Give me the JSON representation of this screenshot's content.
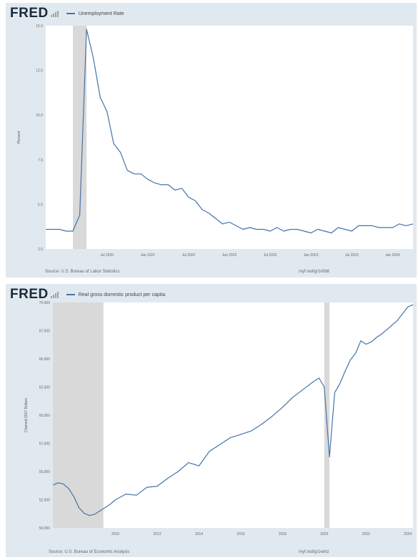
{
  "brand": "FRED",
  "charts": [
    {
      "legend": "Unemployment Rate",
      "source": "Source: U.S. Bureau of Labor Statistics",
      "url": "myf.red/g/1v0b8",
      "line_color": "#4572a7",
      "recession_color": "#d9d9d9"
    },
    {
      "legend": "Real gross domestic product per capita",
      "source": "Source: U.S. Bureau of Economic Analysis",
      "url": "myf.red/g/1vehz",
      "line_color": "#4572a7",
      "recession_color": "#d9d9d9"
    }
  ],
  "chart_data": [
    {
      "type": "line",
      "title": "",
      "xlabel": "",
      "ylabel": "Percent",
      "xlim": [
        2019.75,
        2024.25
      ],
      "ylim": [
        2.5,
        15.0
      ],
      "y_ticks": [
        2.5,
        5.0,
        7.5,
        10.0,
        12.5,
        15.0
      ],
      "y_tick_labels": [
        "2.5",
        "5.0",
        "7.5",
        "10.0",
        "12.5",
        "15.0"
      ],
      "x_ticks": [
        2020.5,
        2021.0,
        2021.5,
        2022.0,
        2022.5,
        2023.0,
        2023.5,
        2024.0
      ],
      "x_tick_labels": [
        "Jul 2020",
        "Jan 2021",
        "Jul 2021",
        "Jan 2022",
        "Jul 2022",
        "Jan 2023",
        "Jul 2023",
        "Jan 2024"
      ],
      "recessions": [
        [
          2020.083,
          2020.25
        ]
      ],
      "grid": false,
      "series": [
        {
          "name": "Unemployment Rate",
          "x": [
            2019.75,
            2019.833,
            2019.917,
            2020.0,
            2020.083,
            2020.167,
            2020.25,
            2020.333,
            2020.417,
            2020.5,
            2020.583,
            2020.667,
            2020.75,
            2020.833,
            2020.917,
            2021.0,
            2021.083,
            2021.167,
            2021.25,
            2021.333,
            2021.417,
            2021.5,
            2021.583,
            2021.667,
            2021.75,
            2021.833,
            2021.917,
            2022.0,
            2022.083,
            2022.167,
            2022.25,
            2022.333,
            2022.417,
            2022.5,
            2022.583,
            2022.667,
            2022.75,
            2022.833,
            2022.917,
            2023.0,
            2023.083,
            2023.167,
            2023.25,
            2023.333,
            2023.417,
            2023.5,
            2023.583,
            2023.667,
            2023.75,
            2023.833,
            2023.917,
            2024.0,
            2024.083,
            2024.167,
            2024.25
          ],
          "y": [
            3.6,
            3.6,
            3.6,
            3.5,
            3.5,
            4.4,
            14.8,
            13.2,
            11.0,
            10.2,
            8.4,
            7.9,
            6.9,
            6.7,
            6.7,
            6.4,
            6.2,
            6.1,
            6.1,
            5.8,
            5.9,
            5.4,
            5.2,
            4.7,
            4.5,
            4.2,
            3.9,
            4.0,
            3.8,
            3.6,
            3.7,
            3.6,
            3.6,
            3.5,
            3.7,
            3.5,
            3.6,
            3.6,
            3.5,
            3.4,
            3.6,
            3.5,
            3.4,
            3.7,
            3.6,
            3.5,
            3.8,
            3.8,
            3.8,
            3.7,
            3.7,
            3.7,
            3.9,
            3.8,
            3.9
          ]
        }
      ]
    },
    {
      "type": "line",
      "title": "",
      "xlabel": "",
      "ylabel": "Chained 2017 Dollars",
      "xlim": [
        2007.0,
        2024.25
      ],
      "ylim": [
        50000,
        70000
      ],
      "y_ticks": [
        50000,
        52500,
        55000,
        57500,
        60000,
        62500,
        65000,
        67500,
        70000
      ],
      "y_tick_labels": [
        "50,000",
        "52,500",
        "55,000",
        "57,500",
        "60,000",
        "62,500",
        "65,000",
        "67,500",
        "70,000"
      ],
      "x_ticks": [
        2010,
        2012,
        2014,
        2016,
        2018,
        2020,
        2022,
        2024
      ],
      "x_tick_labels": [
        "2010",
        "2012",
        "2014",
        "2016",
        "2018",
        "2020",
        "2022",
        "2024"
      ],
      "recessions": [
        [
          2007.0,
          2009.42
        ],
        [
          2020.0,
          2020.25
        ]
      ],
      "grid": false,
      "series": [
        {
          "name": "Real gross domestic product per capita",
          "x": [
            2007.0,
            2007.25,
            2007.5,
            2007.75,
            2008.0,
            2008.25,
            2008.5,
            2008.75,
            2009.0,
            2009.25,
            2009.5,
            2009.75,
            2010.0,
            2010.5,
            2011.0,
            2011.5,
            2012.0,
            2012.5,
            2013.0,
            2013.5,
            2014.0,
            2014.5,
            2015.0,
            2015.5,
            2016.0,
            2016.5,
            2017.0,
            2017.5,
            2018.0,
            2018.5,
            2019.0,
            2019.5,
            2019.75,
            2020.0,
            2020.25,
            2020.5,
            2020.75,
            2021.0,
            2021.25,
            2021.5,
            2021.75,
            2022.0,
            2022.25,
            2022.5,
            2022.75,
            2023.0,
            2023.5,
            2024.0,
            2024.25
          ],
          "y": [
            53800,
            54000,
            53900,
            53500,
            52800,
            51800,
            51300,
            51100,
            51200,
            51500,
            51800,
            52100,
            52500,
            53000,
            52900,
            53600,
            53700,
            54400,
            55000,
            55800,
            55500,
            56800,
            57400,
            58000,
            58300,
            58600,
            59200,
            59900,
            60700,
            61600,
            62300,
            63000,
            63300,
            62500,
            56300,
            62000,
            62800,
            63900,
            64900,
            65500,
            66600,
            66300,
            66500,
            66900,
            67200,
            67600,
            68400,
            69600,
            69800
          ]
        }
      ]
    }
  ]
}
